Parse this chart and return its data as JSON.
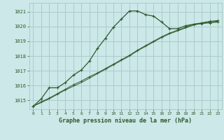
{
  "title": "Graphe pression niveau de la mer (hPa)",
  "bg_color": "#cce8e8",
  "grid_color": "#aacccc",
  "line_color": "#2d5a2d",
  "xlim": [
    -0.5,
    23.5
  ],
  "ylim": [
    1014.4,
    1021.6
  ],
  "yticks": [
    1015,
    1016,
    1017,
    1018,
    1019,
    1020,
    1021
  ],
  "xticks": [
    0,
    1,
    2,
    3,
    4,
    5,
    6,
    7,
    8,
    9,
    10,
    11,
    12,
    13,
    14,
    15,
    16,
    17,
    18,
    19,
    20,
    21,
    22,
    23
  ],
  "series1_x": [
    0,
    1,
    2,
    3,
    4,
    5,
    6,
    7,
    8,
    9,
    10,
    11,
    12,
    13,
    14,
    15,
    16,
    17,
    18,
    19,
    20,
    21,
    22,
    23
  ],
  "series1_y": [
    1014.6,
    1015.1,
    1015.85,
    1015.85,
    1016.2,
    1016.7,
    1017.05,
    1017.65,
    1018.5,
    1019.2,
    1019.95,
    1020.5,
    1021.05,
    1021.05,
    1020.8,
    1020.7,
    1020.3,
    1019.85,
    1019.85,
    1020.05,
    1020.15,
    1020.2,
    1020.25,
    1020.3
  ],
  "series2_x": [
    0,
    1,
    2,
    3,
    4,
    5,
    6,
    7,
    8,
    9,
    10,
    11,
    12,
    13,
    14,
    15,
    16,
    17,
    18,
    19,
    20,
    21,
    22,
    23
  ],
  "series2_y": [
    1014.6,
    1014.9,
    1015.15,
    1015.45,
    1015.75,
    1016.05,
    1016.3,
    1016.6,
    1016.85,
    1017.15,
    1017.45,
    1017.75,
    1018.05,
    1018.4,
    1018.7,
    1019.0,
    1019.3,
    1019.55,
    1019.75,
    1019.95,
    1020.15,
    1020.25,
    1020.35,
    1020.4
  ],
  "series3_x": [
    0,
    1,
    2,
    3,
    4,
    5,
    6,
    7,
    8,
    9,
    10,
    11,
    12,
    13,
    14,
    15,
    16,
    17,
    18,
    19,
    20,
    21,
    22,
    23
  ],
  "series3_y": [
    1014.6,
    1014.85,
    1015.1,
    1015.4,
    1015.7,
    1015.95,
    1016.2,
    1016.5,
    1016.8,
    1017.1,
    1017.4,
    1017.7,
    1018.0,
    1018.35,
    1018.65,
    1018.95,
    1019.25,
    1019.5,
    1019.7,
    1019.9,
    1020.1,
    1020.2,
    1020.3,
    1020.35
  ]
}
